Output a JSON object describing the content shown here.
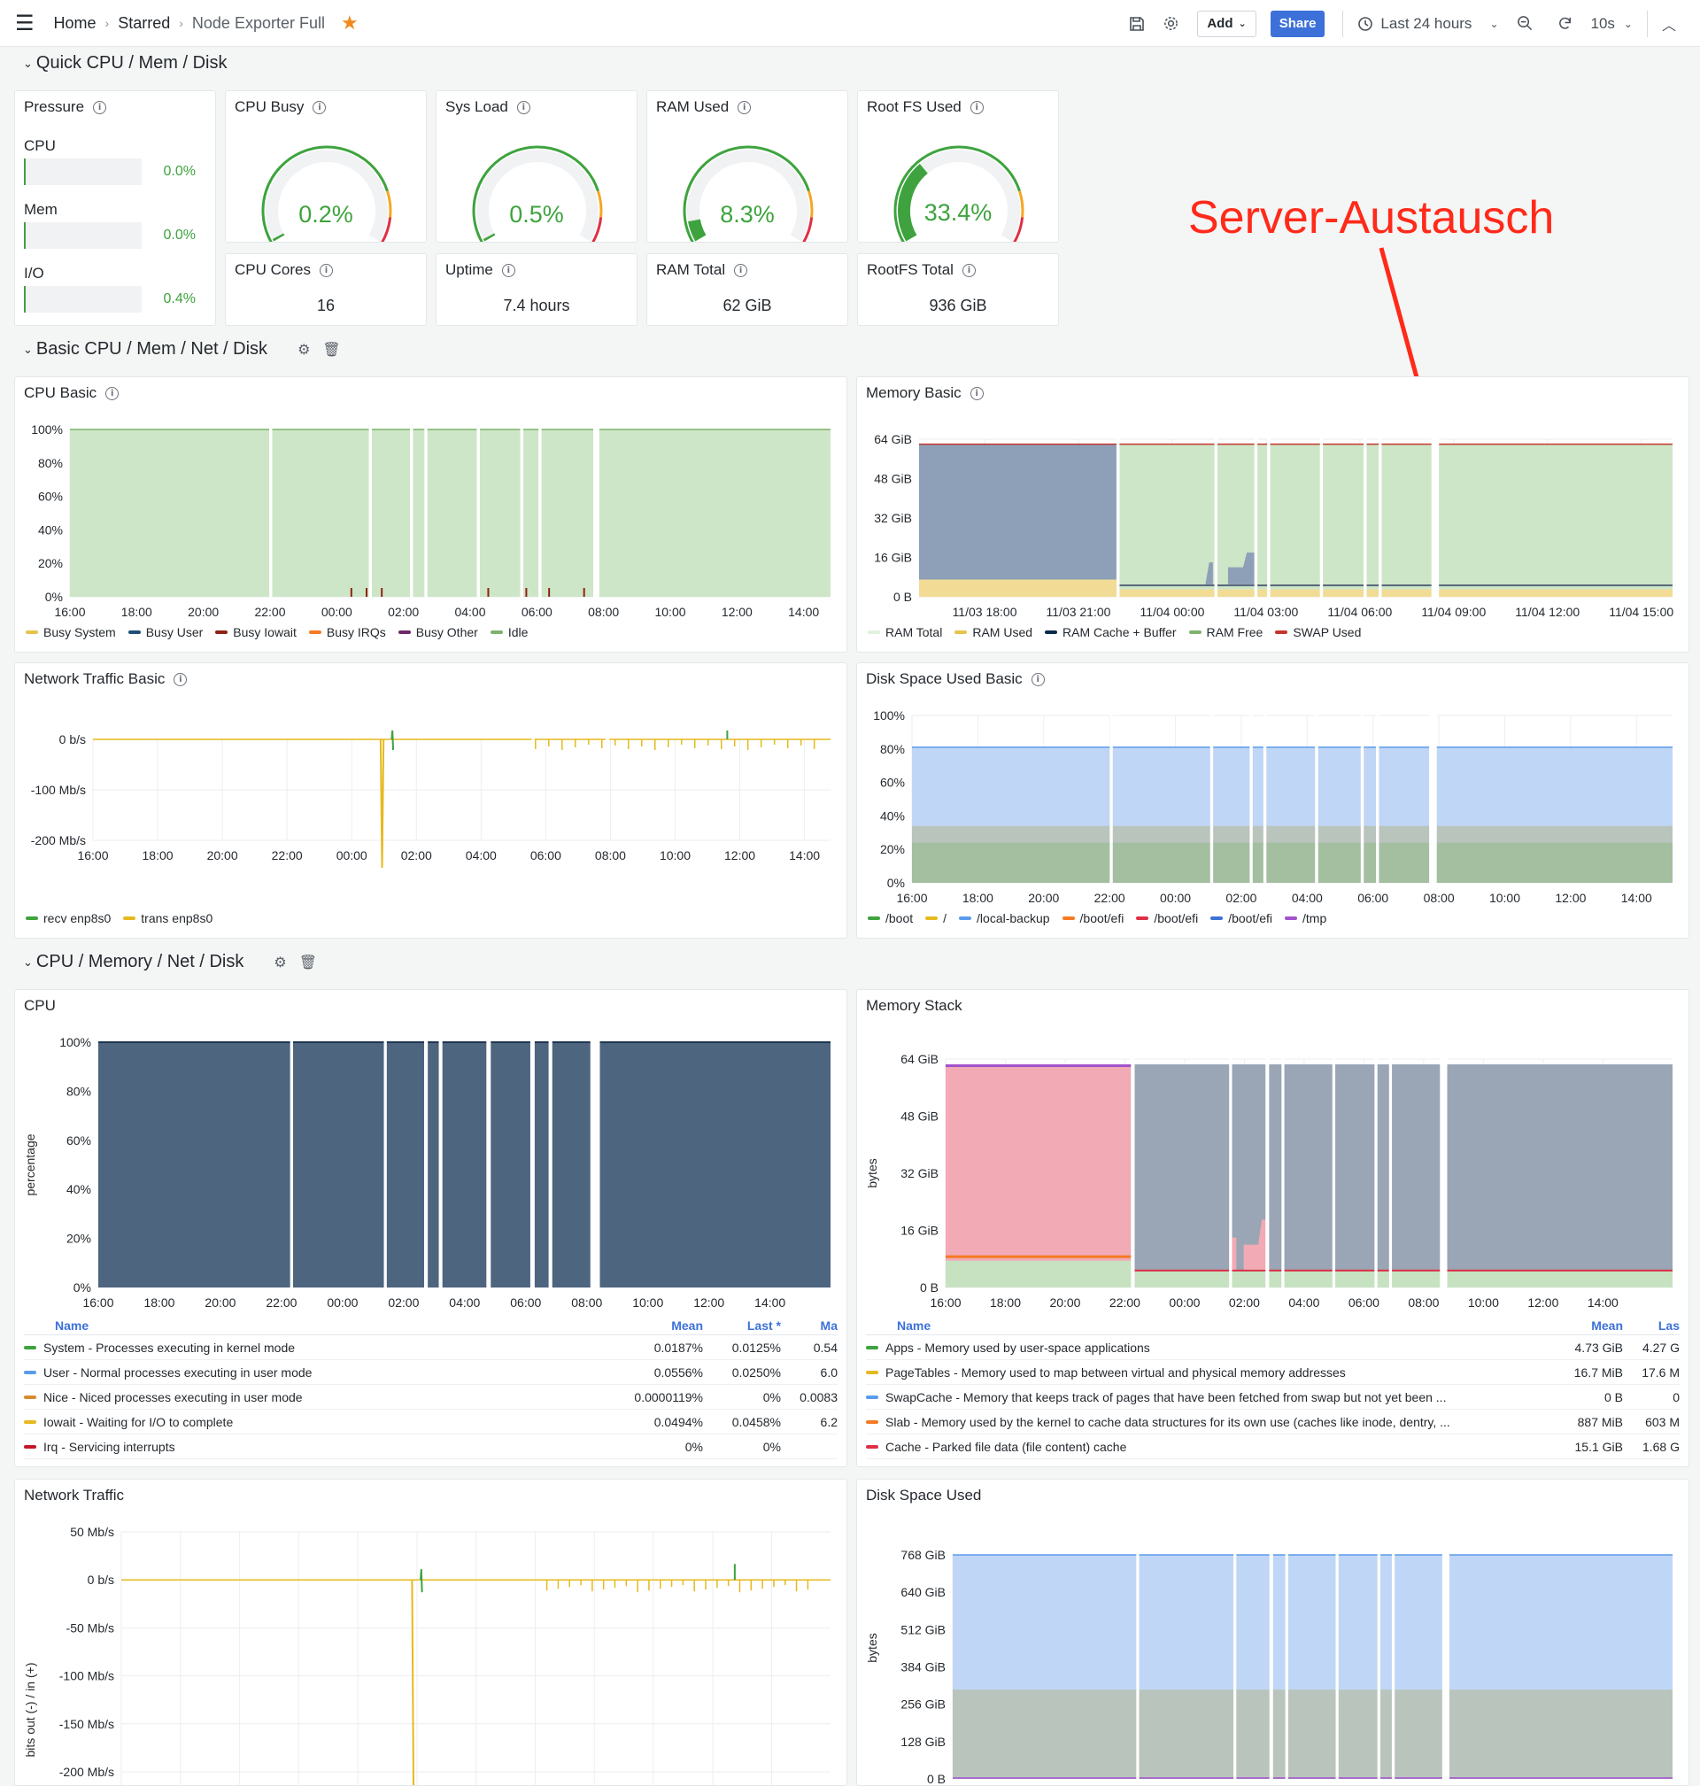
{
  "nav": {
    "breadcrumb": [
      "Home",
      "Starred",
      "Node Exporter Full"
    ],
    "add_label": "Add",
    "share_label": "Share",
    "time_range": "Last 24 hours",
    "refresh": "10s"
  },
  "rows": {
    "quick": "Quick CPU / Mem / Disk",
    "basic": "Basic CPU / Mem / Net / Disk",
    "full": "CPU / Memory / Net / Disk"
  },
  "pressure": {
    "title": "Pressure",
    "items": [
      {
        "label": "CPU",
        "value": "0.0%",
        "fraction": 0.0
      },
      {
        "label": "Mem",
        "value": "0.0%",
        "fraction": 0.0
      },
      {
        "label": "I/O",
        "value": "0.4%",
        "fraction": 0.004
      }
    ]
  },
  "gauges": [
    {
      "title": "CPU Busy",
      "value": "0.2%",
      "fraction": 0.002
    },
    {
      "title": "Sys Load",
      "value": "0.5%",
      "fraction": 0.005
    },
    {
      "title": "RAM Used",
      "value": "8.3%",
      "fraction": 0.083
    },
    {
      "title": "Root FS Used",
      "value": "33.4%",
      "fraction": 0.334
    }
  ],
  "stats": [
    {
      "title": "CPU Cores",
      "value": "16"
    },
    {
      "title": "Uptime",
      "value": "7.4 hours"
    },
    {
      "title": "RAM Total",
      "value": "62 GiB"
    },
    {
      "title": "RootFS Total",
      "value": "936 GiB"
    }
  ],
  "annotation": "Server-Austausch",
  "panels": {
    "cpu_basic": {
      "title": "CPU Basic",
      "yticks": [
        "100%",
        "80%",
        "60%",
        "40%",
        "20%",
        "0%"
      ],
      "xticks": [
        "16:00",
        "18:00",
        "20:00",
        "22:00",
        "00:00",
        "02:00",
        "04:00",
        "06:00",
        "08:00",
        "10:00",
        "12:00",
        "14:00"
      ],
      "legend": [
        {
          "name": "Busy System",
          "color": "#e6c34b"
        },
        {
          "name": "Busy User",
          "color": "#1f4e79"
        },
        {
          "name": "Busy Iowait",
          "color": "#8f2217"
        },
        {
          "name": "Busy IRQs",
          "color": "#f57a23"
        },
        {
          "name": "Busy Other",
          "color": "#6d2a66"
        },
        {
          "name": "Idle",
          "color": "#7eb26d"
        }
      ]
    },
    "memory_basic": {
      "title": "Memory Basic",
      "yticks": [
        "64 GiB",
        "48 GiB",
        "32 GiB",
        "16 GiB",
        "0 B"
      ],
      "xticks": [
        "11/03 18:00",
        "11/03 21:00",
        "11/04 00:00",
        "11/04 03:00",
        "11/04 06:00",
        "11/04 09:00",
        "11/04 12:00",
        "11/04 15:00"
      ],
      "legend": [
        {
          "name": "RAM Total",
          "color": "#e0f2dd"
        },
        {
          "name": "RAM Used",
          "color": "#e6c34b"
        },
        {
          "name": "RAM Cache + Buffer",
          "color": "#0b2a4a"
        },
        {
          "name": "RAM Free",
          "color": "#7eb26d"
        },
        {
          "name": "SWAP Used",
          "color": "#c4362c"
        }
      ]
    },
    "net_basic": {
      "title": "Network Traffic Basic",
      "yticks": [
        "0 b/s",
        "-100 Mb/s",
        "-200 Mb/s"
      ],
      "xticks": [
        "16:00",
        "18:00",
        "20:00",
        "22:00",
        "00:00",
        "02:00",
        "04:00",
        "06:00",
        "08:00",
        "10:00",
        "12:00",
        "14:00"
      ],
      "legend": [
        {
          "name": "recv enp8s0",
          "color": "#3ea33e"
        },
        {
          "name": "trans enp8s0",
          "color": "#e6b91e"
        }
      ]
    },
    "disk_basic": {
      "title": "Disk Space Used Basic",
      "yticks": [
        "100%",
        "80%",
        "60%",
        "40%",
        "20%",
        "0%"
      ],
      "xticks": [
        "16:00",
        "18:00",
        "20:00",
        "22:00",
        "00:00",
        "02:00",
        "04:00",
        "06:00",
        "08:00",
        "10:00",
        "12:00",
        "14:00"
      ],
      "legend": [
        {
          "name": "/boot",
          "color": "#3ea33e"
        },
        {
          "name": "/",
          "color": "#e6b91e"
        },
        {
          "name": "/local-backup",
          "color": "#5b9bec"
        },
        {
          "name": "/boot/efi",
          "color": "#f57a23"
        },
        {
          "name": "/boot/efi",
          "color": "#e02f44"
        },
        {
          "name": "/boot/efi",
          "color": "#3d71d9"
        },
        {
          "name": "/tmp",
          "color": "#a352cc"
        }
      ]
    },
    "cpu": {
      "title": "CPU",
      "ylabel": "percentage",
      "yticks": [
        "100%",
        "80%",
        "60%",
        "40%",
        "20%",
        "0%"
      ],
      "xticks": [
        "16:00",
        "18:00",
        "20:00",
        "22:00",
        "00:00",
        "02:00",
        "04:00",
        "06:00",
        "08:00",
        "10:00",
        "12:00",
        "14:00"
      ],
      "columns": [
        "Name",
        "Mean",
        "Last *",
        "Ma"
      ],
      "rows": [
        {
          "name": "System - Processes executing in kernel mode",
          "color": "#3ea33e",
          "mean": "0.0187%",
          "last": "0.0125%",
          "max": "0.54"
        },
        {
          "name": "User - Normal processes executing in user mode",
          "color": "#5b9bec",
          "mean": "0.0556%",
          "last": "0.0250%",
          "max": "6.0"
        },
        {
          "name": "Nice - Niced processes executing in user mode",
          "color": "#d98a2e",
          "mean": "0.0000119%",
          "last": "0%",
          "max": "0.0083"
        },
        {
          "name": "Iowait - Waiting for I/O to complete",
          "color": "#e6b91e",
          "mean": "0.0494%",
          "last": "0.0458%",
          "max": "6.2"
        },
        {
          "name": "Irq - Servicing interrupts",
          "color": "#c4162a",
          "mean": "0%",
          "last": "0%",
          "max": ""
        }
      ]
    },
    "memory_stack": {
      "title": "Memory Stack",
      "ylabel": "bytes",
      "yticks": [
        "64 GiB",
        "48 GiB",
        "32 GiB",
        "16 GiB",
        "0 B"
      ],
      "xticks": [
        "16:00",
        "18:00",
        "20:00",
        "22:00",
        "00:00",
        "02:00",
        "04:00",
        "06:00",
        "08:00",
        "10:00",
        "12:00",
        "14:00"
      ],
      "columns": [
        "Name",
        "Mean",
        "Las"
      ],
      "rows": [
        {
          "name": "Apps - Memory used by user-space applications",
          "color": "#3ea33e",
          "mean": "4.73 GiB",
          "last": "4.27 G"
        },
        {
          "name": "PageTables - Memory used to map between virtual and physical memory addresses",
          "color": "#e6b91e",
          "mean": "16.7 MiB",
          "last": "17.6 M"
        },
        {
          "name": "SwapCache - Memory that keeps track of pages that have been fetched from swap but not yet been ...",
          "color": "#5b9bec",
          "mean": "0 B",
          "last": "0"
        },
        {
          "name": "Slab - Memory used by the kernel to cache data structures for its own use (caches like inode, dentry, ...",
          "color": "#f57a23",
          "mean": "887 MiB",
          "last": "603 M"
        },
        {
          "name": "Cache - Parked file data (file content) cache",
          "color": "#e02f44",
          "mean": "15.1 GiB",
          "last": "1.68 G"
        }
      ]
    },
    "net": {
      "title": "Network Traffic",
      "ylabel": "bits out (-) / in (+)",
      "yticks": [
        "50 Mb/s",
        "0 b/s",
        "-50 Mb/s",
        "-100 Mb/s",
        "-150 Mb/s",
        "-200 Mb/s"
      ]
    },
    "disk": {
      "title": "Disk Space Used",
      "ylabel": "bytes",
      "yticks": [
        "768 GiB",
        "640 GiB",
        "512 GiB",
        "384 GiB",
        "256 GiB",
        "128 GiB",
        "0 B"
      ]
    }
  }
}
